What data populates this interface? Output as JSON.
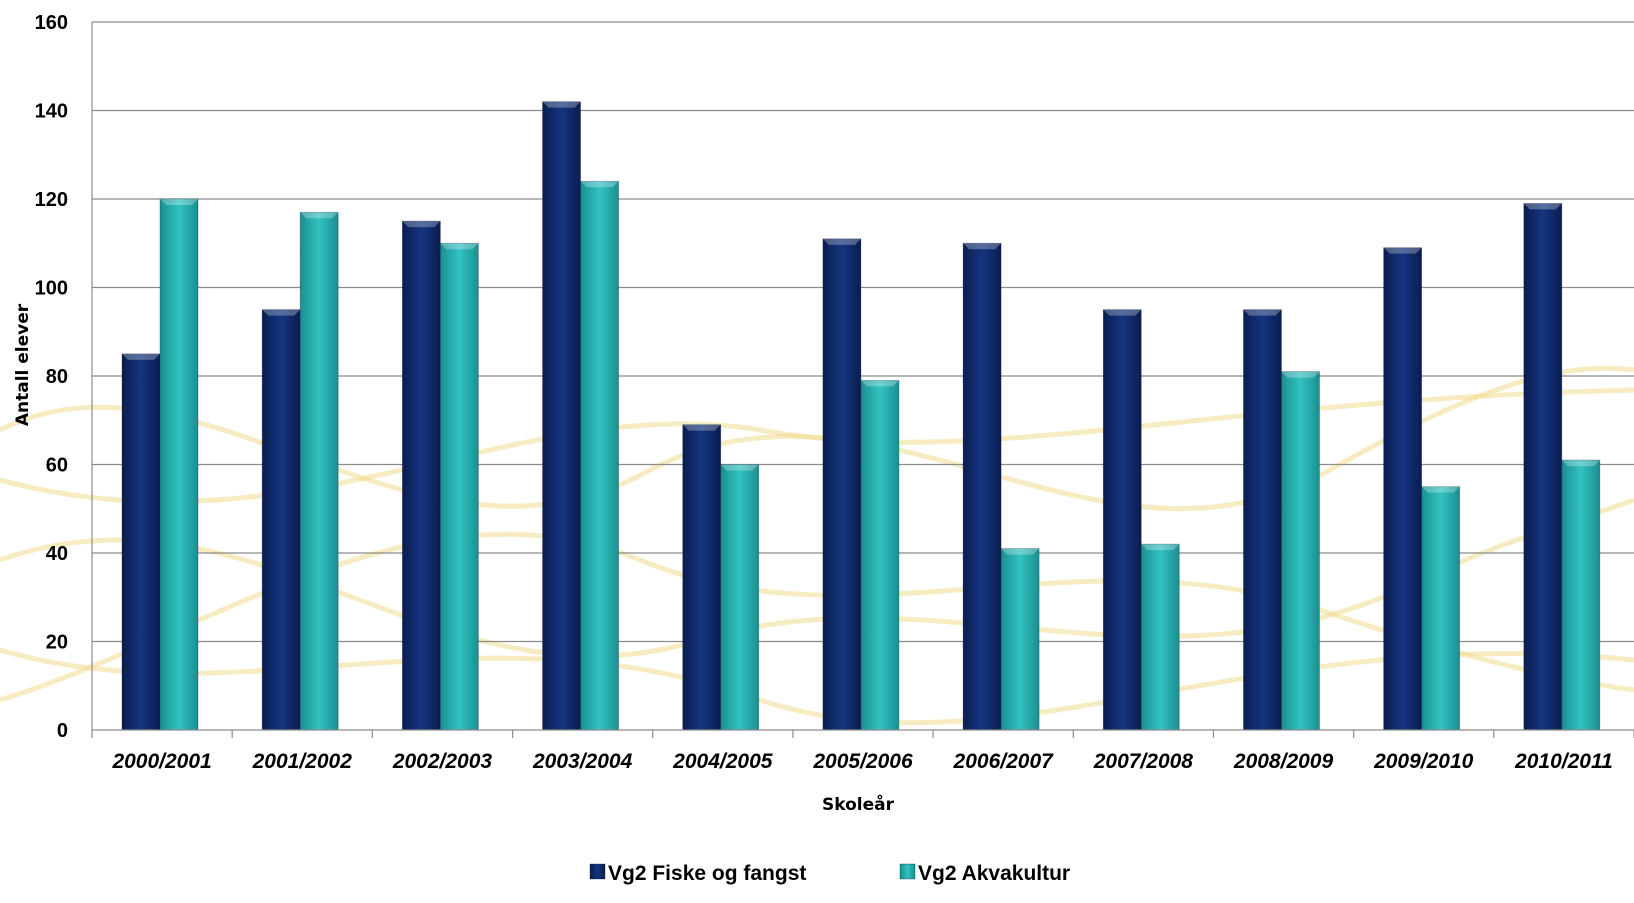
{
  "chart_data": {
    "type": "bar",
    "title": "",
    "xlabel": "Skoleår",
    "ylabel": "Antall elever",
    "ylim": [
      0,
      160
    ],
    "yticks": [
      0,
      20,
      40,
      60,
      80,
      100,
      120,
      140,
      160
    ],
    "categories": [
      "2000/2001",
      "2001/2002",
      "2002/2003",
      "2003/2004",
      "2004/2005",
      "2005/2006",
      "2006/2007",
      "2007/2008",
      "2008/2009",
      "2009/2010",
      "2010/2011"
    ],
    "series": [
      {
        "name": "Vg2 Fiske og fangst",
        "color": "#0f2a6b",
        "values": [
          85,
          95,
          115,
          142,
          69,
          111,
          110,
          95,
          95,
          109,
          119
        ]
      },
      {
        "name": "Vg2 Akvakultur",
        "color": "#2ab3b3",
        "values": [
          120,
          117,
          110,
          124,
          60,
          79,
          41,
          42,
          81,
          55,
          61
        ]
      }
    ],
    "grid": true,
    "legend_position": "bottom-center"
  }
}
